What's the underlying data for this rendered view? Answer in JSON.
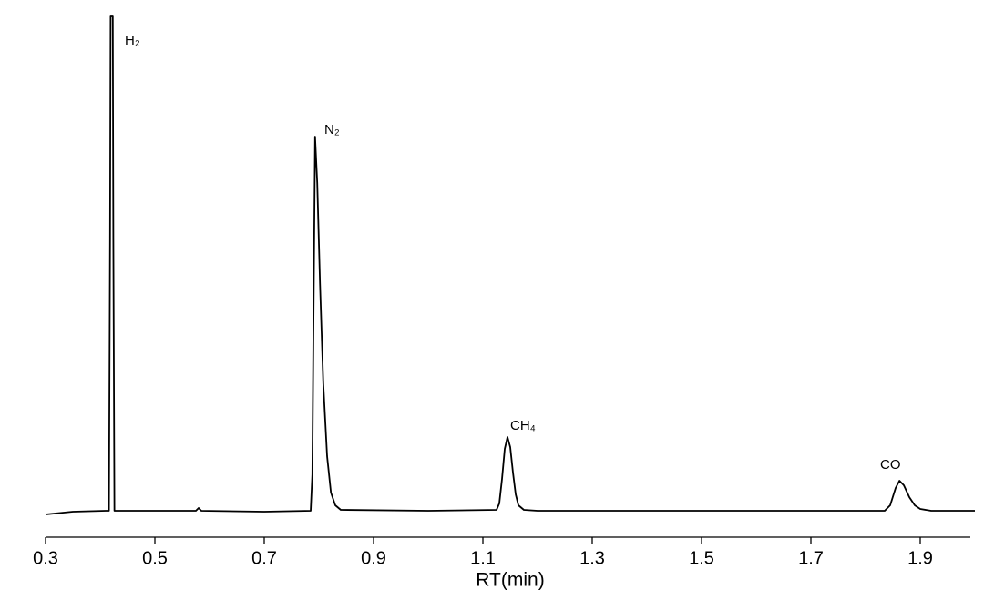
{
  "chart_data": {
    "type": "line",
    "x_label": "RT(min)",
    "x": [
      0.3,
      0.35,
      0.41,
      0.416,
      0.418,
      0.419,
      0.423,
      0.424,
      0.426,
      0.5,
      0.575,
      0.58,
      0.585,
      0.7,
      0.785,
      0.788,
      0.79,
      0.793,
      0.797,
      0.802,
      0.808,
      0.815,
      0.822,
      0.83,
      0.84,
      1.0,
      1.125,
      1.13,
      1.135,
      1.14,
      1.145,
      1.15,
      1.155,
      1.16,
      1.165,
      1.175,
      1.2,
      1.5,
      1.835,
      1.845,
      1.855,
      1.862,
      1.87,
      1.88,
      1.89,
      1.9,
      1.92,
      2.0
    ],
    "values": [
      -4,
      -1,
      0,
      0,
      300,
      543,
      543,
      300,
      0,
      0,
      0,
      3,
      0,
      -1,
      0,
      40,
      200,
      411,
      360,
      250,
      140,
      60,
      20,
      6,
      1,
      0,
      1,
      8,
      35,
      68,
      81,
      70,
      42,
      18,
      6,
      1,
      0,
      0,
      0,
      6,
      25,
      33,
      28,
      15,
      6,
      2,
      0,
      0
    ],
    "color": "#000000",
    "xlim": [
      0.3,
      2.0
    ],
    "xticks": [
      0.3,
      0.5,
      0.7,
      0.9,
      1.1,
      1.3,
      1.5,
      1.7,
      1.9
    ],
    "ylim": [
      -10,
      543
    ],
    "annotations": [
      "H₂",
      "N₂",
      "CH₄",
      "CO"
    ]
  }
}
